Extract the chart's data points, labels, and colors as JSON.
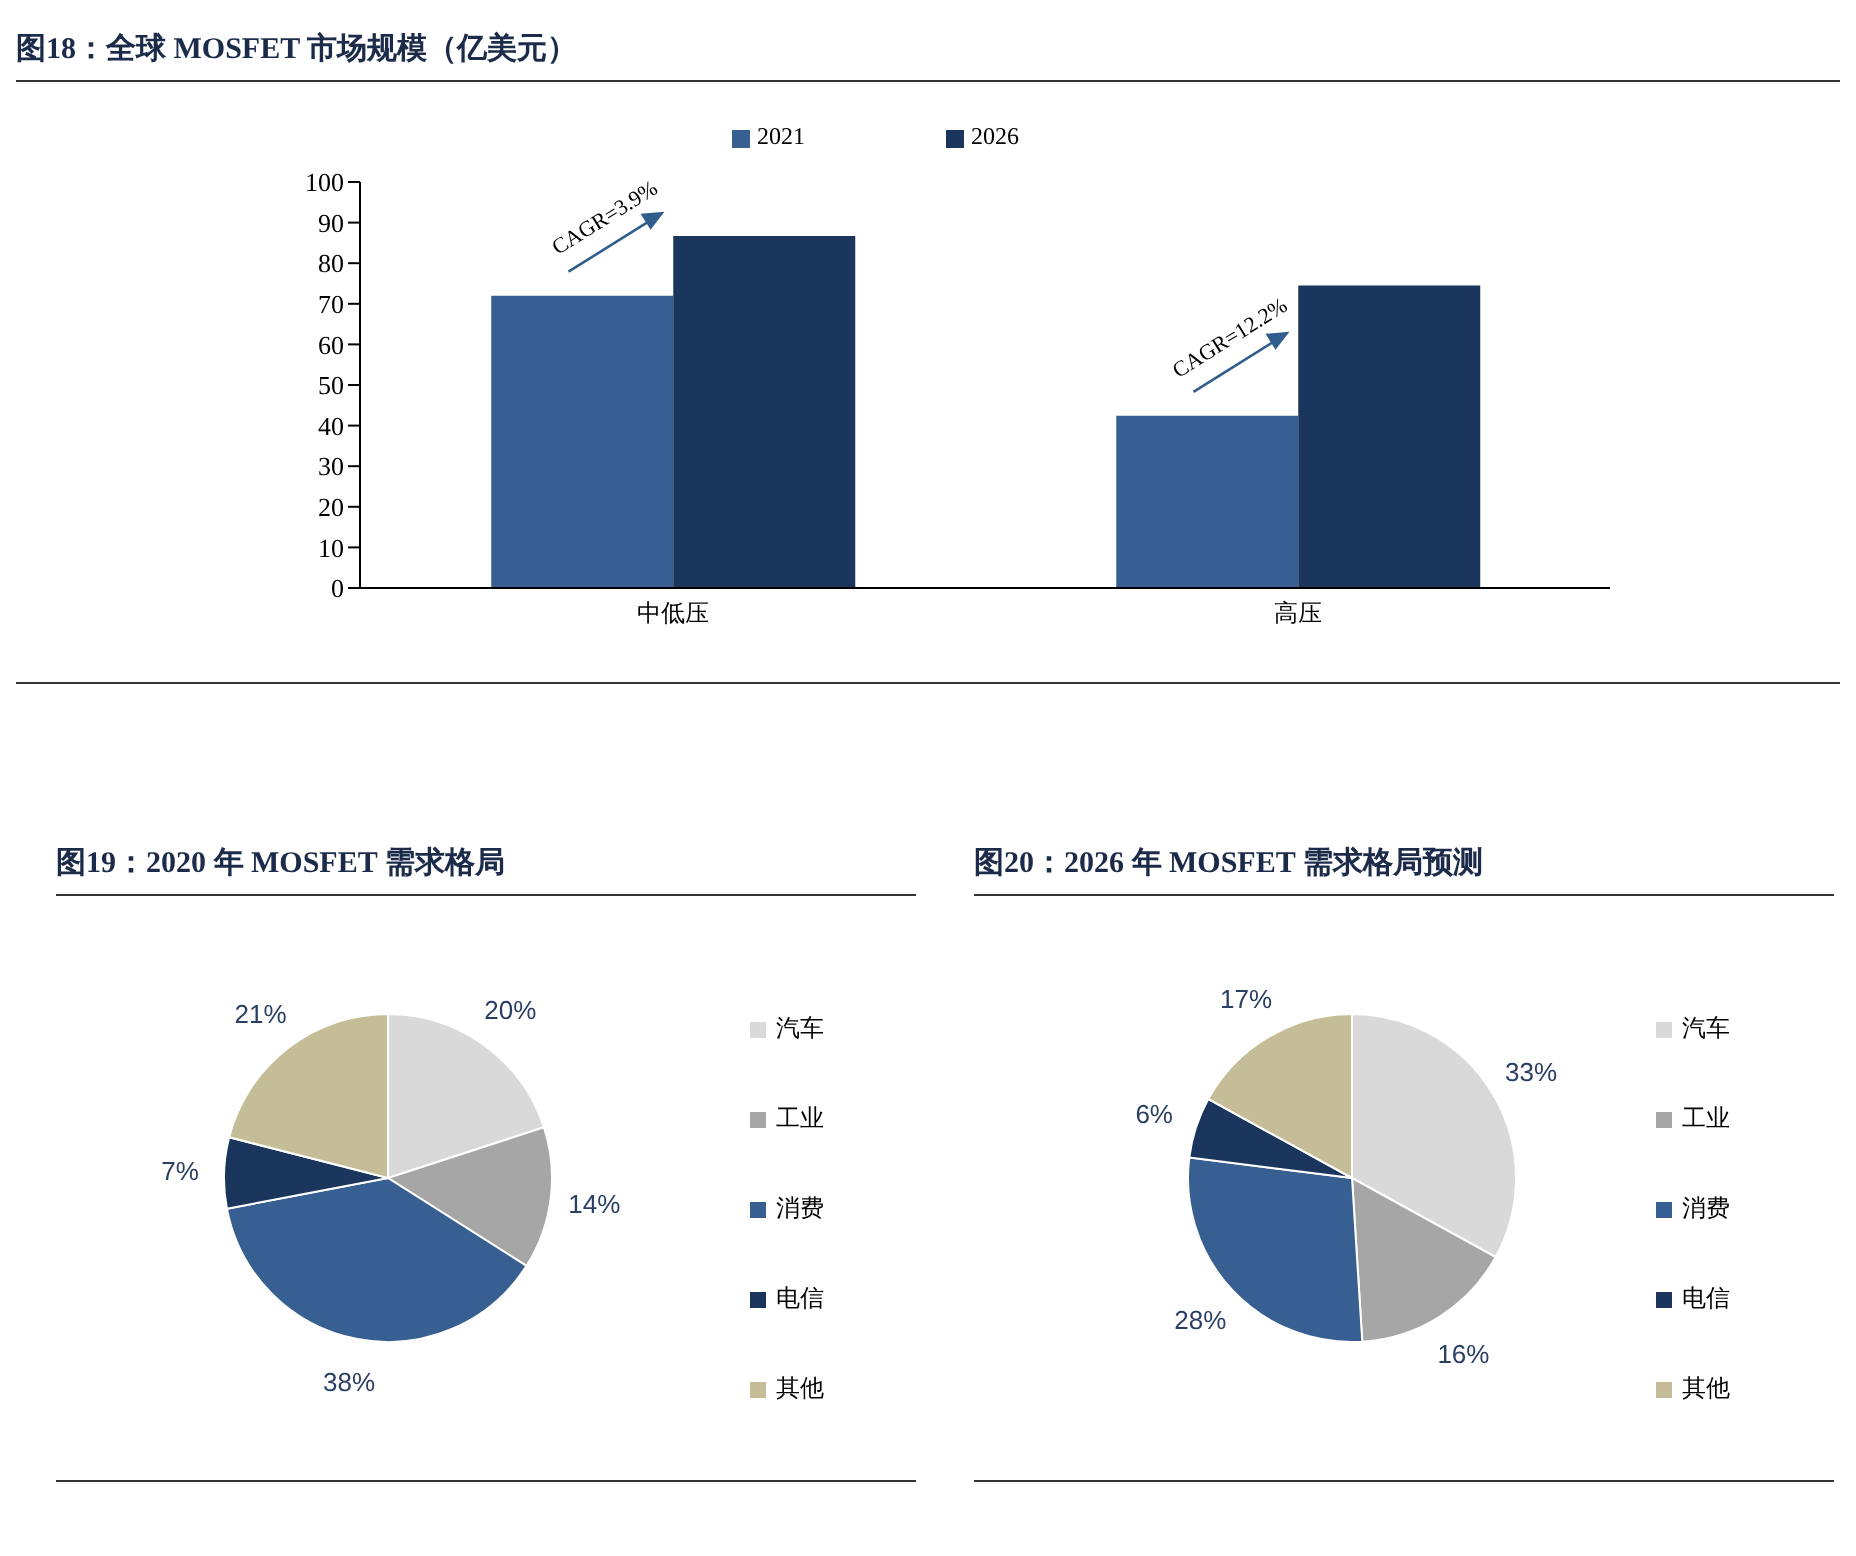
{
  "chart_data": [
    {
      "type": "bar",
      "title": "图18：全球 MOSFET 市场规模（亿美元）",
      "categories": [
        "中低压",
        "高压"
      ],
      "series": [
        {
          "name": "2021",
          "color": "#375f91",
          "values": [
            72,
            42.4
          ]
        },
        {
          "name": "2026",
          "color": "#1a365c",
          "values": [
            86.7,
            74.5
          ]
        }
      ],
      "ylim": [
        0,
        100
      ],
      "yticks": [
        0,
        10,
        20,
        30,
        40,
        50,
        60,
        70,
        80,
        90,
        100
      ],
      "legend": "top",
      "annotations": [
        "CAGR=3.9%",
        "CAGR=12.2%"
      ]
    },
    {
      "type": "pie",
      "title": "图19：2020 年 MOSFET 需求格局",
      "categories": [
        "汽车",
        "工业",
        "消费",
        "电信",
        "其他"
      ],
      "values": [
        20,
        14,
        38,
        7,
        21
      ],
      "colors": [
        "#d9d9d9",
        "#a6a6a6",
        "#375f91",
        "#1a365c",
        "#c4bd97"
      ],
      "value_labels": [
        "20%",
        "14%",
        "38%",
        "7%",
        "21%"
      ],
      "legend": "right"
    },
    {
      "type": "pie",
      "title": "图20：2026 年 MOSFET 需求格局预测",
      "categories": [
        "汽车",
        "工业",
        "消费",
        "电信",
        "其他"
      ],
      "values": [
        33,
        16,
        28,
        6,
        17
      ],
      "colors": [
        "#d9d9d9",
        "#a6a6a6",
        "#375f91",
        "#1a365c",
        "#c4bd97"
      ],
      "value_labels": [
        "33%",
        "16%",
        "28%",
        "6%",
        "17%"
      ],
      "legend": "right"
    }
  ]
}
